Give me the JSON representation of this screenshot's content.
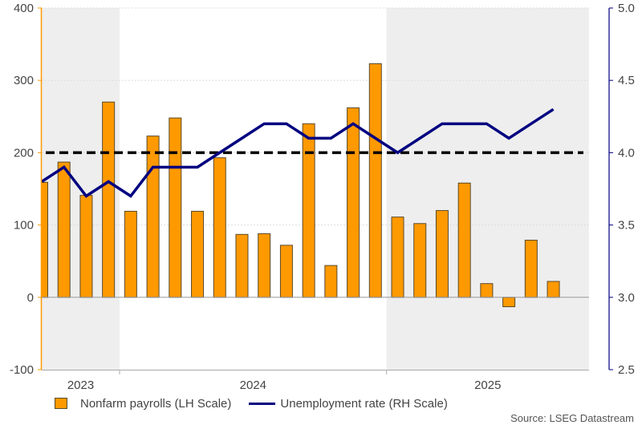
{
  "chart_data": {
    "type": "bar",
    "title": "",
    "xlabel": "",
    "ylabel": "",
    "x": [
      "2023-03",
      "2023-04",
      "2023-05",
      "2023-06",
      "2023-07",
      "2023-08",
      "2023-09",
      "2023-10",
      "2023-11",
      "2023-12",
      "2024-01",
      "2024-02",
      "2024-03",
      "2024-04",
      "2024-05",
      "2024-06",
      "2024-07",
      "2024-08",
      "2024-09",
      "2024-10",
      "2024-11",
      "2024-12",
      "2025-01",
      "2025-02"
    ],
    "year_labels": [
      {
        "label": "2023",
        "start_index": 0,
        "end_index": 3.5
      },
      {
        "label": "2024",
        "start_index": 3.5,
        "end_index": 15.5
      },
      {
        "label": "2025",
        "start_index": 15.5,
        "end_index": 24.6
      }
    ],
    "shaded_years": [
      "2023",
      "2025"
    ],
    "series": [
      {
        "name": "Nonfarm payrolls (LH Scale)",
        "type": "bar",
        "axis": "left",
        "color": "#FF9900",
        "values": [
          159,
          187,
          141,
          270,
          119,
          223,
          248,
          119,
          193,
          87,
          88,
          72,
          240,
          44,
          262,
          323,
          111,
          102,
          120,
          158,
          19,
          -13,
          79,
          22
        ]
      },
      {
        "name": "Unemployment rate (RH Scale)",
        "type": "line",
        "axis": "right",
        "color": "#000080",
        "values": [
          3.8,
          3.9,
          3.7,
          3.8,
          3.7,
          3.9,
          3.9,
          3.9,
          4.0,
          4.1,
          4.2,
          4.2,
          4.1,
          4.1,
          4.2,
          4.1,
          4.0,
          4.1,
          4.2,
          4.2,
          4.2,
          4.1,
          4.2,
          4.3
        ]
      }
    ],
    "reference_line": {
      "value_left": 200,
      "value_right": 4.0,
      "style": "dashed",
      "color": "#000000"
    },
    "y_left": {
      "ylim": [
        -100,
        400
      ],
      "ticks": [
        -100,
        0,
        100,
        200,
        300,
        400
      ],
      "tick_labels": [
        "-100",
        "0",
        "100",
        "200",
        "300",
        "400"
      ],
      "color": "#FF9900"
    },
    "y_right": {
      "ylim": [
        2.5,
        5.0
      ],
      "ticks": [
        2.5,
        3.0,
        3.5,
        4.0,
        4.5,
        5.0
      ],
      "tick_labels": [
        "2.5",
        "3.0",
        "3.5",
        "4.0",
        "4.5",
        "5.0"
      ],
      "color": "#000080"
    },
    "grid": true,
    "legend_position": "bottom-left"
  },
  "legend": {
    "bar_label": "Nonfarm payrolls (LH Scale)",
    "line_label": "Unemployment rate (RH Scale)"
  },
  "source": "Source: LSEG Datastream"
}
